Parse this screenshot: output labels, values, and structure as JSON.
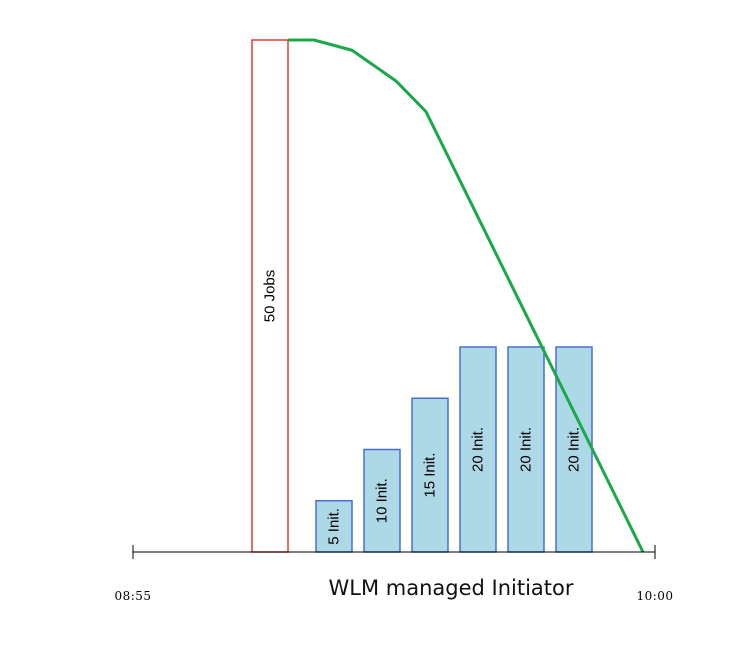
{
  "chart_data": {
    "type": "bar",
    "xlabel": "WLM managed Initiator",
    "x_ticks": [
      "08:55",
      "10:00"
    ],
    "jobs_bar": {
      "label": "50 Jobs",
      "value": 50,
      "color": "#e53935"
    },
    "initiator_bars": [
      {
        "label": "5 Init.",
        "value": 5
      },
      {
        "label": "10 Init.",
        "value": 10
      },
      {
        "label": "15 Init.",
        "value": 15
      },
      {
        "label": "20 Init.",
        "value": 20
      },
      {
        "label": "20 Init.",
        "value": 20
      },
      {
        "label": "20 Init.",
        "value": 20
      }
    ],
    "initiator_bar_fill": "#add8e6",
    "initiator_bar_stroke": "#4a6fd1",
    "remaining_jobs_line": {
      "color": "#1aa84a",
      "values": [
        50,
        50,
        49,
        46,
        43,
        0
      ]
    }
  }
}
